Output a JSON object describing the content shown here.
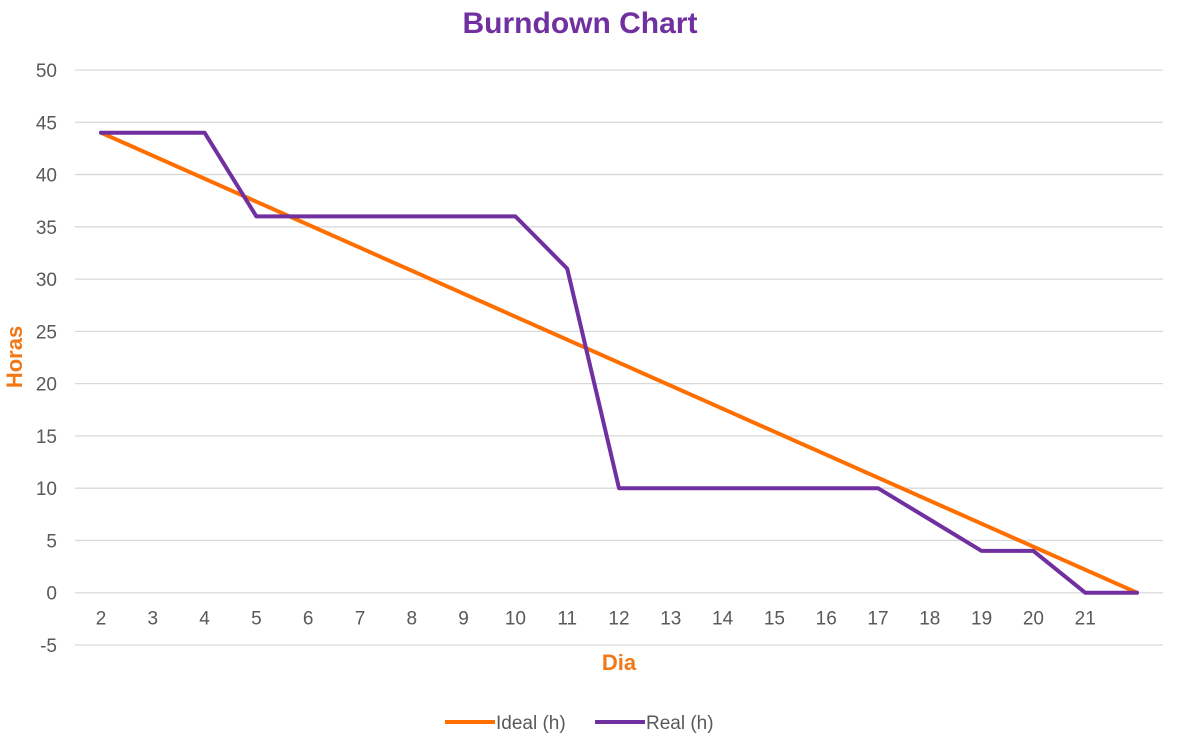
{
  "chart_data": {
    "type": "line",
    "title": "Burndown Chart",
    "xlabel": "Dia",
    "ylabel": "Horas",
    "categories": [
      "2",
      "3",
      "4",
      "5",
      "6",
      "7",
      "8",
      "9",
      "10",
      "11",
      "12",
      "13",
      "14",
      "15",
      "16",
      "17",
      "18",
      "19",
      "20",
      "21",
      ""
    ],
    "ylim": [
      -5,
      50
    ],
    "yticks": [
      -5,
      0,
      5,
      10,
      15,
      20,
      25,
      30,
      35,
      40,
      45,
      50
    ],
    "grid": true,
    "legend_position": "bottom",
    "series": [
      {
        "name": "Ideal (h)",
        "color": "#FF6F00",
        "values": [
          44,
          41.8,
          39.6,
          37.4,
          35.2,
          33,
          30.8,
          28.6,
          26.4,
          24.2,
          22,
          19.8,
          17.6,
          15.4,
          13.2,
          11,
          8.8,
          6.6,
          4.4,
          2.2,
          0
        ]
      },
      {
        "name": "Real (h)",
        "color": "#7030A0",
        "values": [
          44,
          44,
          44,
          36,
          36,
          36,
          36,
          36,
          36,
          31,
          10,
          10,
          10,
          10,
          10,
          10,
          7,
          4,
          4,
          0,
          0
        ]
      }
    ]
  },
  "colors": {
    "title": "#7030A0",
    "axis_title": "#F07818",
    "gridline": "#D9D9D9",
    "tick_text": "#595959"
  }
}
